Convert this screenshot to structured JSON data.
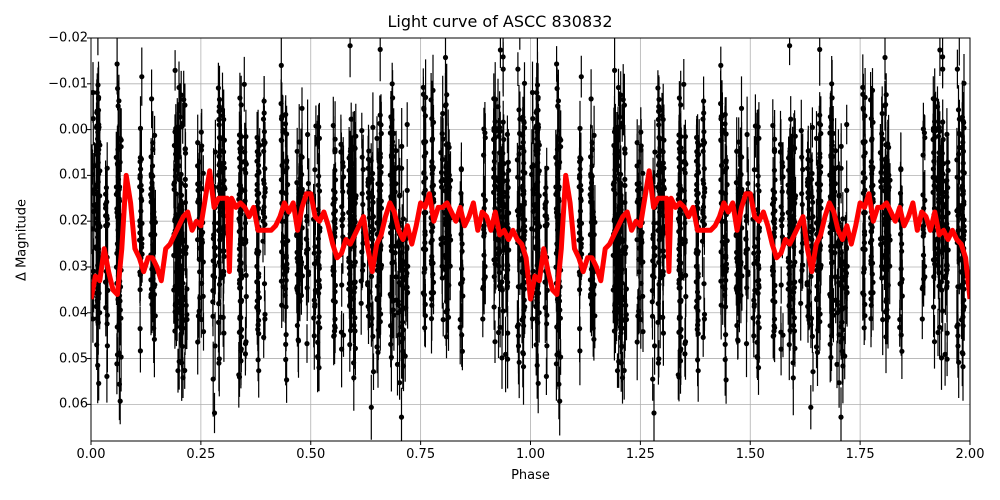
{
  "chart_data": {
    "type": "scatter",
    "title": "Light curve of ASCC 830832",
    "xlabel": "Phase",
    "ylabel": "Δ Magnitude",
    "xlim": [
      0.0,
      2.0
    ],
    "ylim": [
      0.068,
      -0.02
    ],
    "y_inverted": true,
    "grid": true,
    "legend": null,
    "x_ticks": [
      "0.00",
      "0.25",
      "0.50",
      "0.75",
      "1.00",
      "1.25",
      "1.50",
      "1.75",
      "2.00"
    ],
    "x_tick_values": [
      0.0,
      0.25,
      0.5,
      0.75,
      1.0,
      1.25,
      1.5,
      1.75,
      2.0
    ],
    "y_ticks": [
      "−0.02",
      "−0.01",
      "0.00",
      "0.01",
      "0.02",
      "0.03",
      "0.04",
      "0.05",
      "0.06"
    ],
    "y_tick_values": [
      -0.02,
      -0.01,
      0.0,
      0.01,
      0.02,
      0.03,
      0.04,
      0.05,
      0.06
    ],
    "series": [
      {
        "name": "observations",
        "kind": "errorbar-scatter",
        "color": "#000000",
        "description": "Dense cloud of black points with vertical error bars, phase-folded and repeated over two cycles; magnitudes span roughly -0.02 to 0.068, centered near 0.02",
        "approx_center": 0.022,
        "approx_spread": 0.018,
        "approx_errorbar": 0.006
      },
      {
        "name": "binned mean",
        "kind": "line",
        "color": "#ff0000",
        "linewidth": 5,
        "phase": [
          0.0,
          0.01,
          0.02,
          0.03,
          0.04,
          0.05,
          0.06,
          0.07,
          0.08,
          0.09,
          0.1,
          0.11,
          0.12,
          0.13,
          0.14,
          0.15,
          0.16,
          0.17,
          0.18,
          0.19,
          0.2,
          0.21,
          0.22,
          0.23,
          0.24,
          0.25,
          0.26,
          0.27,
          0.28,
          0.29,
          0.3,
          0.31,
          0.315,
          0.32,
          0.33,
          0.34,
          0.35,
          0.36,
          0.37,
          0.38,
          0.39,
          0.4,
          0.41,
          0.42,
          0.43,
          0.44,
          0.45,
          0.46,
          0.47,
          0.48,
          0.49,
          0.5,
          0.51,
          0.52,
          0.53,
          0.54,
          0.55,
          0.56,
          0.57,
          0.58,
          0.59,
          0.6,
          0.61,
          0.62,
          0.63,
          0.64,
          0.65,
          0.66,
          0.67,
          0.68,
          0.69,
          0.7,
          0.71,
          0.72,
          0.73,
          0.74,
          0.75,
          0.76,
          0.77,
          0.78,
          0.79,
          0.8,
          0.81,
          0.82,
          0.83,
          0.84,
          0.85,
          0.86,
          0.87,
          0.88,
          0.89,
          0.9,
          0.91,
          0.92,
          0.93,
          0.94,
          0.95,
          0.96,
          0.97,
          0.98,
          0.99,
          1.0
        ],
        "values": [
          0.037,
          0.032,
          0.033,
          0.026,
          0.031,
          0.035,
          0.036,
          0.026,
          0.01,
          0.016,
          0.026,
          0.028,
          0.031,
          0.028,
          0.028,
          0.03,
          0.033,
          0.026,
          0.025,
          0.023,
          0.021,
          0.019,
          0.018,
          0.022,
          0.02,
          0.021,
          0.015,
          0.009,
          0.017,
          0.015,
          0.015,
          0.015,
          0.031,
          0.015,
          0.017,
          0.016,
          0.017,
          0.019,
          0.017,
          0.022,
          0.022,
          0.022,
          0.022,
          0.021,
          0.019,
          0.016,
          0.018,
          0.016,
          0.022,
          0.017,
          0.014,
          0.014,
          0.019,
          0.02,
          0.018,
          0.021,
          0.025,
          0.028,
          0.027,
          0.024,
          0.025,
          0.023,
          0.021,
          0.019,
          0.026,
          0.031,
          0.025,
          0.023,
          0.019,
          0.016,
          0.018,
          0.022,
          0.024,
          0.021,
          0.025,
          0.021,
          0.016,
          0.017,
          0.014,
          0.02,
          0.017,
          0.017,
          0.016,
          0.018,
          0.02,
          0.017,
          0.021,
          0.019,
          0.016,
          0.022,
          0.018,
          0.019,
          0.022,
          0.018,
          0.023,
          0.022,
          0.024,
          0.022,
          0.024,
          0.025,
          0.028,
          0.037
        ],
        "repeat_period": 1.0
      }
    ]
  }
}
